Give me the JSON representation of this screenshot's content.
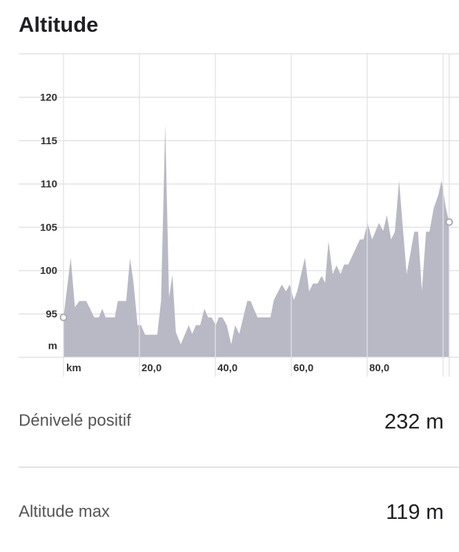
{
  "title": "Altitude",
  "chart_data": {
    "type": "area",
    "title": "Altitude",
    "xlabel": "km",
    "ylabel": "m",
    "xlim": [
      0,
      101.6
    ],
    "ylim": [
      90,
      125
    ],
    "grid": true,
    "x_ticks": [
      20,
      40,
      60,
      80,
      100
    ],
    "x_tick_labels": [
      "20,0",
      "40,0",
      "60,0",
      "80,0",
      ""
    ],
    "y_ticks": [
      95,
      100,
      105,
      110,
      115,
      120
    ],
    "y_tick_labels": [
      "95",
      "100",
      "105",
      "110",
      "115",
      "120"
    ],
    "fill_color": "#b9b9c6",
    "grid_color": "#e2e2e6",
    "x": [
      0,
      1.9,
      3.0,
      4.2,
      6.0,
      8.1,
      9.3,
      10.2,
      11.1,
      13.5,
      14.3,
      16.5,
      17.5,
      18.4,
      19.5,
      20.4,
      21.5,
      24.7,
      25.7,
      26.8,
      27.8,
      28.7,
      29.6,
      30.9,
      33.0,
      33.9,
      34.9,
      36.0,
      37.1,
      38.1,
      39.0,
      40.1,
      40.9,
      41.9,
      43.0,
      44.2,
      45.2,
      46.3,
      48.4,
      49.3,
      51.1,
      54.5,
      55.4,
      57.5,
      58.6,
      59.6,
      60.7,
      61.6,
      63.6,
      64.7,
      65.7,
      66.9,
      68.0,
      68.9,
      69.8,
      70.9,
      71.9,
      73.0,
      73.9,
      75.0,
      78.1,
      79.0,
      80.1,
      81.3,
      83.1,
      84.2,
      85.2,
      86.3,
      87.3,
      88.4,
      89.3,
      90.4,
      92.4,
      93.4,
      94.4,
      95.5,
      96.4,
      97.5,
      98.7,
      99.6,
      100.7,
      101.6
    ],
    "y": [
      94.6,
      101.5,
      95.8,
      96.5,
      96.5,
      94.6,
      94.6,
      95.6,
      94.6,
      94.6,
      96.5,
      96.5,
      101.4,
      98.8,
      93.7,
      93.7,
      92.6,
      92.6,
      96.5,
      116.9,
      96.9,
      99.5,
      92.9,
      91.5,
      93.7,
      92.7,
      93.7,
      93.7,
      95.6,
      94.6,
      94.6,
      93.7,
      94.6,
      94.6,
      93.7,
      91.5,
      93.7,
      92.7,
      96.5,
      96.5,
      94.6,
      94.6,
      96.6,
      98.4,
      97.6,
      98.4,
      96.6,
      97.7,
      101.5,
      97.6,
      98.5,
      98.5,
      99.4,
      98.6,
      103.4,
      99.6,
      100.6,
      99.6,
      100.7,
      100.7,
      103.6,
      103.6,
      105.5,
      103.6,
      105.5,
      104.6,
      106.4,
      103.6,
      104.5,
      110.4,
      105.5,
      99.6,
      104.5,
      104.5,
      97.7,
      104.5,
      104.5,
      107.2,
      108.7,
      110.4,
      107.3,
      105.6
    ]
  },
  "stats": [
    {
      "label": "Dénivelé positif",
      "value": "232 m"
    },
    {
      "label": "Altitude max",
      "value": "119 m"
    }
  ]
}
